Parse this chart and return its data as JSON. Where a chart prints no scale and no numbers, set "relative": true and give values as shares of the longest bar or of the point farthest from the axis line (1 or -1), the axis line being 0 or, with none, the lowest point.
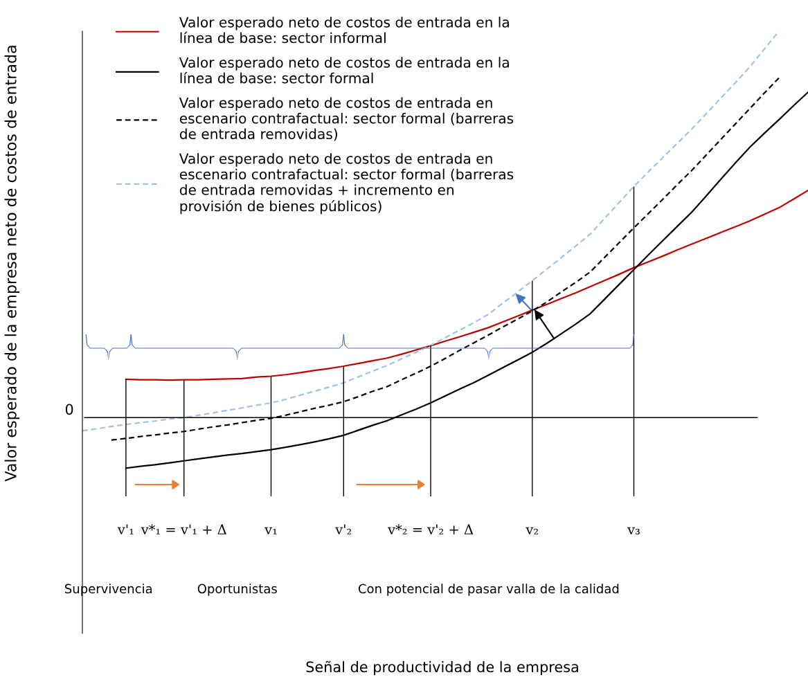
{
  "chart_data": {
    "type": "line",
    "relative": true,
    "ylabel": "Valor esperado de la empresa neto de costos de entrada",
    "categories": [
      null,
      null,
      null,
      "v'₁",
      null,
      null,
      null,
      "v*₁ = v'₁ + Δ",
      null,
      null,
      null,
      null,
      null,
      "v₁",
      null,
      null,
      null,
      null,
      "v'₂",
      null,
      null,
      null,
      null,
      null,
      "v*₂ = v'₂ + Δ",
      null,
      null,
      null,
      null,
      null,
      null,
      "v₂",
      null,
      null,
      null,
      null,
      null,
      null,
      "v₃",
      null,
      null,
      null,
      null,
      null,
      null,
      null,
      null,
      null,
      null,
      null,
      null
    ],
    "tick_labels": "x",
    "legend": "top left",
    "ref_lines": [
      {
        "axis": "y",
        "value": 0,
        "label": "0"
      },
      {
        "axis": "x",
        "value": "v'₁"
      },
      {
        "axis": "x",
        "value": "v*₁ = v'₁ + Δ"
      },
      {
        "axis": "x",
        "value": "v₁"
      },
      {
        "axis": "x",
        "value": "v'₂"
      },
      {
        "axis": "x",
        "value": "v*₂ = v'₂ + Δ"
      },
      {
        "axis": "x",
        "value": "v₂"
      },
      {
        "axis": "x",
        "value": "v₃"
      }
    ],
    "annotations": [
      "Supervivencia",
      "Oportunistas",
      "Con potencial de pasar valla de la calidad",
      "Señal de productividad de la empresa"
    ],
    "series": [
      {
        "name": "Valor esperado neto de costos de entrada en la\nlínea de base: sector informal",
        "color": "#c00000",
        "line_style": "solid",
        "values": [
          null,
          null,
          null,
          0.099,
          0.098,
          0.098,
          0.097,
          0.098,
          0.098,
          0.099,
          0.1,
          0.101,
          0.105,
          0.107,
          0.111,
          0.116,
          0.122,
          0.127,
          0.133,
          0.14,
          0.147,
          0.154,
          0.164,
          0.175,
          0.186,
          0.198,
          0.209,
          0.221,
          0.233,
          0.248,
          0.263,
          0.278,
          0.293,
          0.308,
          0.323,
          0.339,
          0.355,
          0.371,
          0.388,
          0.403,
          0.418,
          0.434,
          0.449,
          0.464,
          0.479,
          0.494,
          0.509,
          0.526,
          0.543,
          0.565,
          0.588
        ]
      },
      {
        "name": "Valor esperado neto de costos de entrada en la\nlínea de base: sector formal",
        "color": "#000000",
        "line_style": "solid",
        "values": [
          null,
          null,
          null,
          -0.131,
          -0.126,
          -0.122,
          -0.117,
          -0.112,
          -0.107,
          -0.102,
          -0.097,
          -0.093,
          -0.088,
          -0.083,
          -0.077,
          -0.07,
          -0.063,
          -0.055,
          -0.046,
          -0.033,
          -0.02,
          -0.008,
          0.007,
          0.022,
          0.038,
          0.056,
          0.074,
          0.091,
          0.11,
          0.13,
          0.149,
          0.169,
          0.192,
          0.217,
          0.242,
          0.269,
          0.307,
          0.345,
          0.383,
          0.421,
          0.458,
          0.495,
          0.532,
          0.574,
          0.617,
          0.659,
          0.7,
          0.736,
          0.771,
          0.807,
          0.842
        ]
      },
      {
        "name": "Valor esperado neto de costos de entrada en\nescenario contrafactual: sector formal (barreras\nde entrada removidas)",
        "color": "#000000",
        "line_style": "dashed",
        "values": [
          null,
          null,
          -0.058,
          -0.054,
          -0.049,
          -0.045,
          -0.04,
          -0.036,
          -0.03,
          -0.024,
          -0.019,
          -0.013,
          -0.007,
          -0.002,
          0.006,
          0.015,
          0.024,
          0.032,
          0.041,
          0.054,
          0.068,
          0.08,
          0.098,
          0.115,
          0.133,
          0.153,
          0.174,
          0.194,
          0.214,
          0.235,
          0.255,
          0.276,
          0.299,
          0.325,
          0.35,
          0.377,
          0.415,
          0.453,
          0.491,
          0.528,
          0.565,
          0.603,
          0.64,
          0.68,
          0.72,
          0.76,
          0.8,
          0.84,
          0.879,
          null,
          null
        ]
      },
      {
        "name": "Valor esperado neto de costos de entrada en\nescenario contrafactual: sector formal (barreras\nde entrada removidas + incremento en\nprovisión de bienes públicos)",
        "color": "#9dc3e6",
        "line_style": "dashed",
        "values": [
          -0.034,
          -0.029,
          -0.023,
          -0.018,
          -0.013,
          -0.009,
          -0.004,
          0.0,
          0.006,
          0.012,
          0.019,
          0.025,
          0.032,
          0.038,
          0.047,
          0.058,
          0.068,
          0.079,
          0.09,
          0.105,
          0.12,
          0.135,
          0.152,
          0.169,
          0.187,
          0.207,
          0.226,
          0.246,
          0.268,
          0.297,
          0.325,
          0.354,
          0.384,
          0.414,
          0.444,
          0.475,
          0.516,
          0.557,
          0.598,
          0.636,
          0.673,
          0.71,
          0.747,
          0.787,
          0.827,
          0.867,
          0.908,
          0.954,
          1.0,
          null,
          null
        ]
      }
    ]
  }
}
